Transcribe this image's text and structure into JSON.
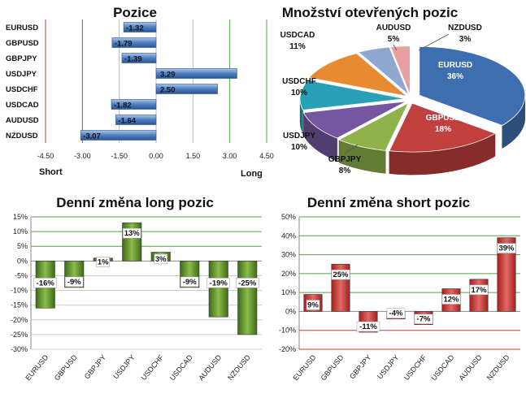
{
  "colors": {
    "blue_bar": "#4f7fc0",
    "green_bar": "#5e8f2a",
    "red_bar": "#c0302e",
    "grid_green": "#58a04a",
    "grid_red": "#c83c3c"
  },
  "chart_data": [
    {
      "id": "positions",
      "type": "bar",
      "orientation": "horizontal",
      "title": "Pozice",
      "categories": [
        "EURUSD",
        "GBPUSD",
        "GBPJPY",
        "USDJPY",
        "USDCHF",
        "USDCAD",
        "AUDUSD",
        "NZDUSD"
      ],
      "values": [
        -1.32,
        -1.79,
        -1.39,
        3.29,
        2.5,
        -1.82,
        -1.64,
        -3.07
      ],
      "value_labels": [
        "-1.32",
        "-1.79",
        "-1.39",
        "3.29",
        "2.50",
        "-1.82",
        "-1.64",
        "-3.07"
      ],
      "xlim": [
        -4.5,
        4.5
      ],
      "xticks": [
        "-4.50",
        "-3.00",
        "-1.50",
        "0.00",
        "1.50",
        "3.00",
        "4.50"
      ],
      "left_label": "Short",
      "right_label": "Long"
    },
    {
      "id": "open_positions",
      "type": "pie",
      "title": "Množství otevřených pozic",
      "slices": [
        {
          "name": "EURUSD",
          "value": 36,
          "label": "36%",
          "color": "#3d6fb0"
        },
        {
          "name": "GBPUSD",
          "value": 18,
          "label": "18%",
          "color": "#c0403e"
        },
        {
          "name": "GBPJPY",
          "value": 8,
          "label": "8%",
          "color": "#8fb24a"
        },
        {
          "name": "USDJPY",
          "value": 10,
          "label": "10%",
          "color": "#7457a0"
        },
        {
          "name": "USDCHF",
          "value": 10,
          "label": "10%",
          "color": "#2aa0b8"
        },
        {
          "name": "USDCAD",
          "value": 11,
          "label": "11%",
          "color": "#e88a30"
        },
        {
          "name": "AUDUSD",
          "value": 5,
          "label": "5%",
          "color": "#8fa8d0"
        },
        {
          "name": "NZDUSD",
          "value": 3,
          "label": "3%",
          "color": "#e8a0a0"
        }
      ]
    },
    {
      "id": "daily_long",
      "type": "bar",
      "title": "Denní změna long pozic",
      "categories": [
        "EURUSD",
        "GBPUSD",
        "GBPJPY",
        "USDJPY",
        "USDCHF",
        "USDCAD",
        "AUDUSD",
        "NZDUSD"
      ],
      "values": [
        -16,
        -9,
        1,
        13,
        3,
        -9,
        -19,
        -25
      ],
      "value_labels": [
        "-16%",
        "-9%",
        "1%",
        "13%",
        "3%",
        "-9%",
        "-19%",
        "-25%"
      ],
      "ylim": [
        -30,
        15
      ],
      "yticks": [
        "15%",
        "10%",
        "5%",
        "0%",
        "-5%",
        "-10%",
        "-15%",
        "-20%",
        "-25%",
        "-30%"
      ]
    },
    {
      "id": "daily_short",
      "type": "bar",
      "title": "Denní změna short pozic",
      "categories": [
        "EURUSD",
        "GBPUSD",
        "GBPJPY",
        "USDJPY",
        "USDCHF",
        "USDCAD",
        "AUDUSD",
        "NZDUSD"
      ],
      "values": [
        9,
        25,
        -11,
        -4,
        -7,
        12,
        17,
        39
      ],
      "value_labels": [
        "9%",
        "25%",
        "-11%",
        "-4%",
        "-7%",
        "12%",
        "17%",
        "39%"
      ],
      "ylim": [
        -20,
        50
      ],
      "yticks": [
        "50%",
        "40%",
        "30%",
        "20%",
        "10%",
        "0%",
        "-10%",
        "-20%"
      ]
    }
  ]
}
